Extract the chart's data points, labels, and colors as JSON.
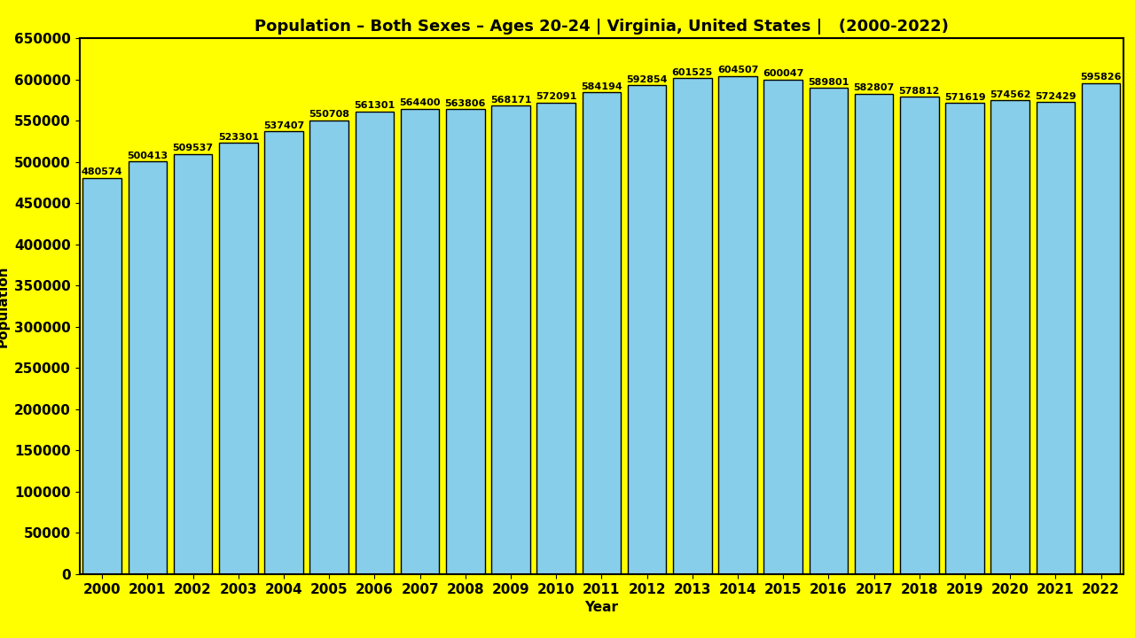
{
  "title": "Population – Both Sexes – Ages 20-24 | Virginia, United States |   (2000-2022)",
  "xlabel": "Year",
  "ylabel": "Population",
  "background_color": "#FFFF00",
  "bar_color": "#87CEEB",
  "bar_edge_color": "#000000",
  "years": [
    2000,
    2001,
    2002,
    2003,
    2004,
    2005,
    2006,
    2007,
    2008,
    2009,
    2010,
    2011,
    2012,
    2013,
    2014,
    2015,
    2016,
    2017,
    2018,
    2019,
    2020,
    2021,
    2022
  ],
  "values": [
    480574,
    500413,
    509537,
    523301,
    537407,
    550708,
    561301,
    564400,
    563806,
    568171,
    572091,
    584194,
    592854,
    601525,
    604507,
    600047,
    589801,
    582807,
    578812,
    571619,
    574562,
    572429,
    595826
  ],
  "ylim": [
    0,
    650000
  ],
  "yticks": [
    0,
    50000,
    100000,
    150000,
    200000,
    250000,
    300000,
    350000,
    400000,
    450000,
    500000,
    550000,
    600000,
    650000
  ],
  "title_fontsize": 13,
  "label_fontsize": 11,
  "tick_fontsize": 11,
  "annotation_fontsize": 8,
  "bar_width": 0.85
}
